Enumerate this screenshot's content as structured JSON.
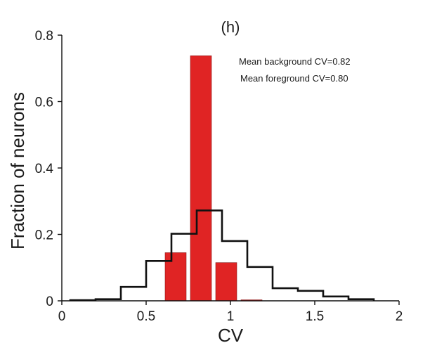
{
  "chart_data": {
    "type": "bar",
    "title": "(h)",
    "xlabel": "CV",
    "ylabel": "Fraction of neurons",
    "xlim": [
      0,
      2
    ],
    "ylim": [
      0,
      0.8
    ],
    "xticks": [
      0,
      0.5,
      1,
      1.5,
      2
    ],
    "xtick_labels": [
      "0",
      "0.5",
      "1",
      "1.5",
      "2"
    ],
    "yticks": [
      0,
      0.2,
      0.4,
      0.6,
      0.8
    ],
    "ytick_labels": [
      "0",
      "0.2",
      "0.4",
      "0.6",
      "0.8"
    ],
    "grid": false,
    "annotations": [
      "Mean background CV=0.82",
      "Mean foreground CV=0.80"
    ],
    "bars": {
      "color": "#e02424",
      "bin_width": 0.15,
      "bin_left_edges": [
        0.6,
        0.75,
        0.9,
        1.05
      ],
      "values": [
        0.145,
        0.738,
        0.115,
        0.003
      ]
    },
    "step": {
      "color": "#111111",
      "edges": [
        0.05,
        0.2,
        0.35,
        0.5,
        0.65,
        0.8,
        0.95,
        1.1,
        1.25,
        1.4,
        1.55,
        1.7,
        1.85
      ],
      "values": [
        0.002,
        0.005,
        0.042,
        0.12,
        0.202,
        0.272,
        0.18,
        0.102,
        0.038,
        0.03,
        0.013,
        0.005
      ]
    }
  }
}
